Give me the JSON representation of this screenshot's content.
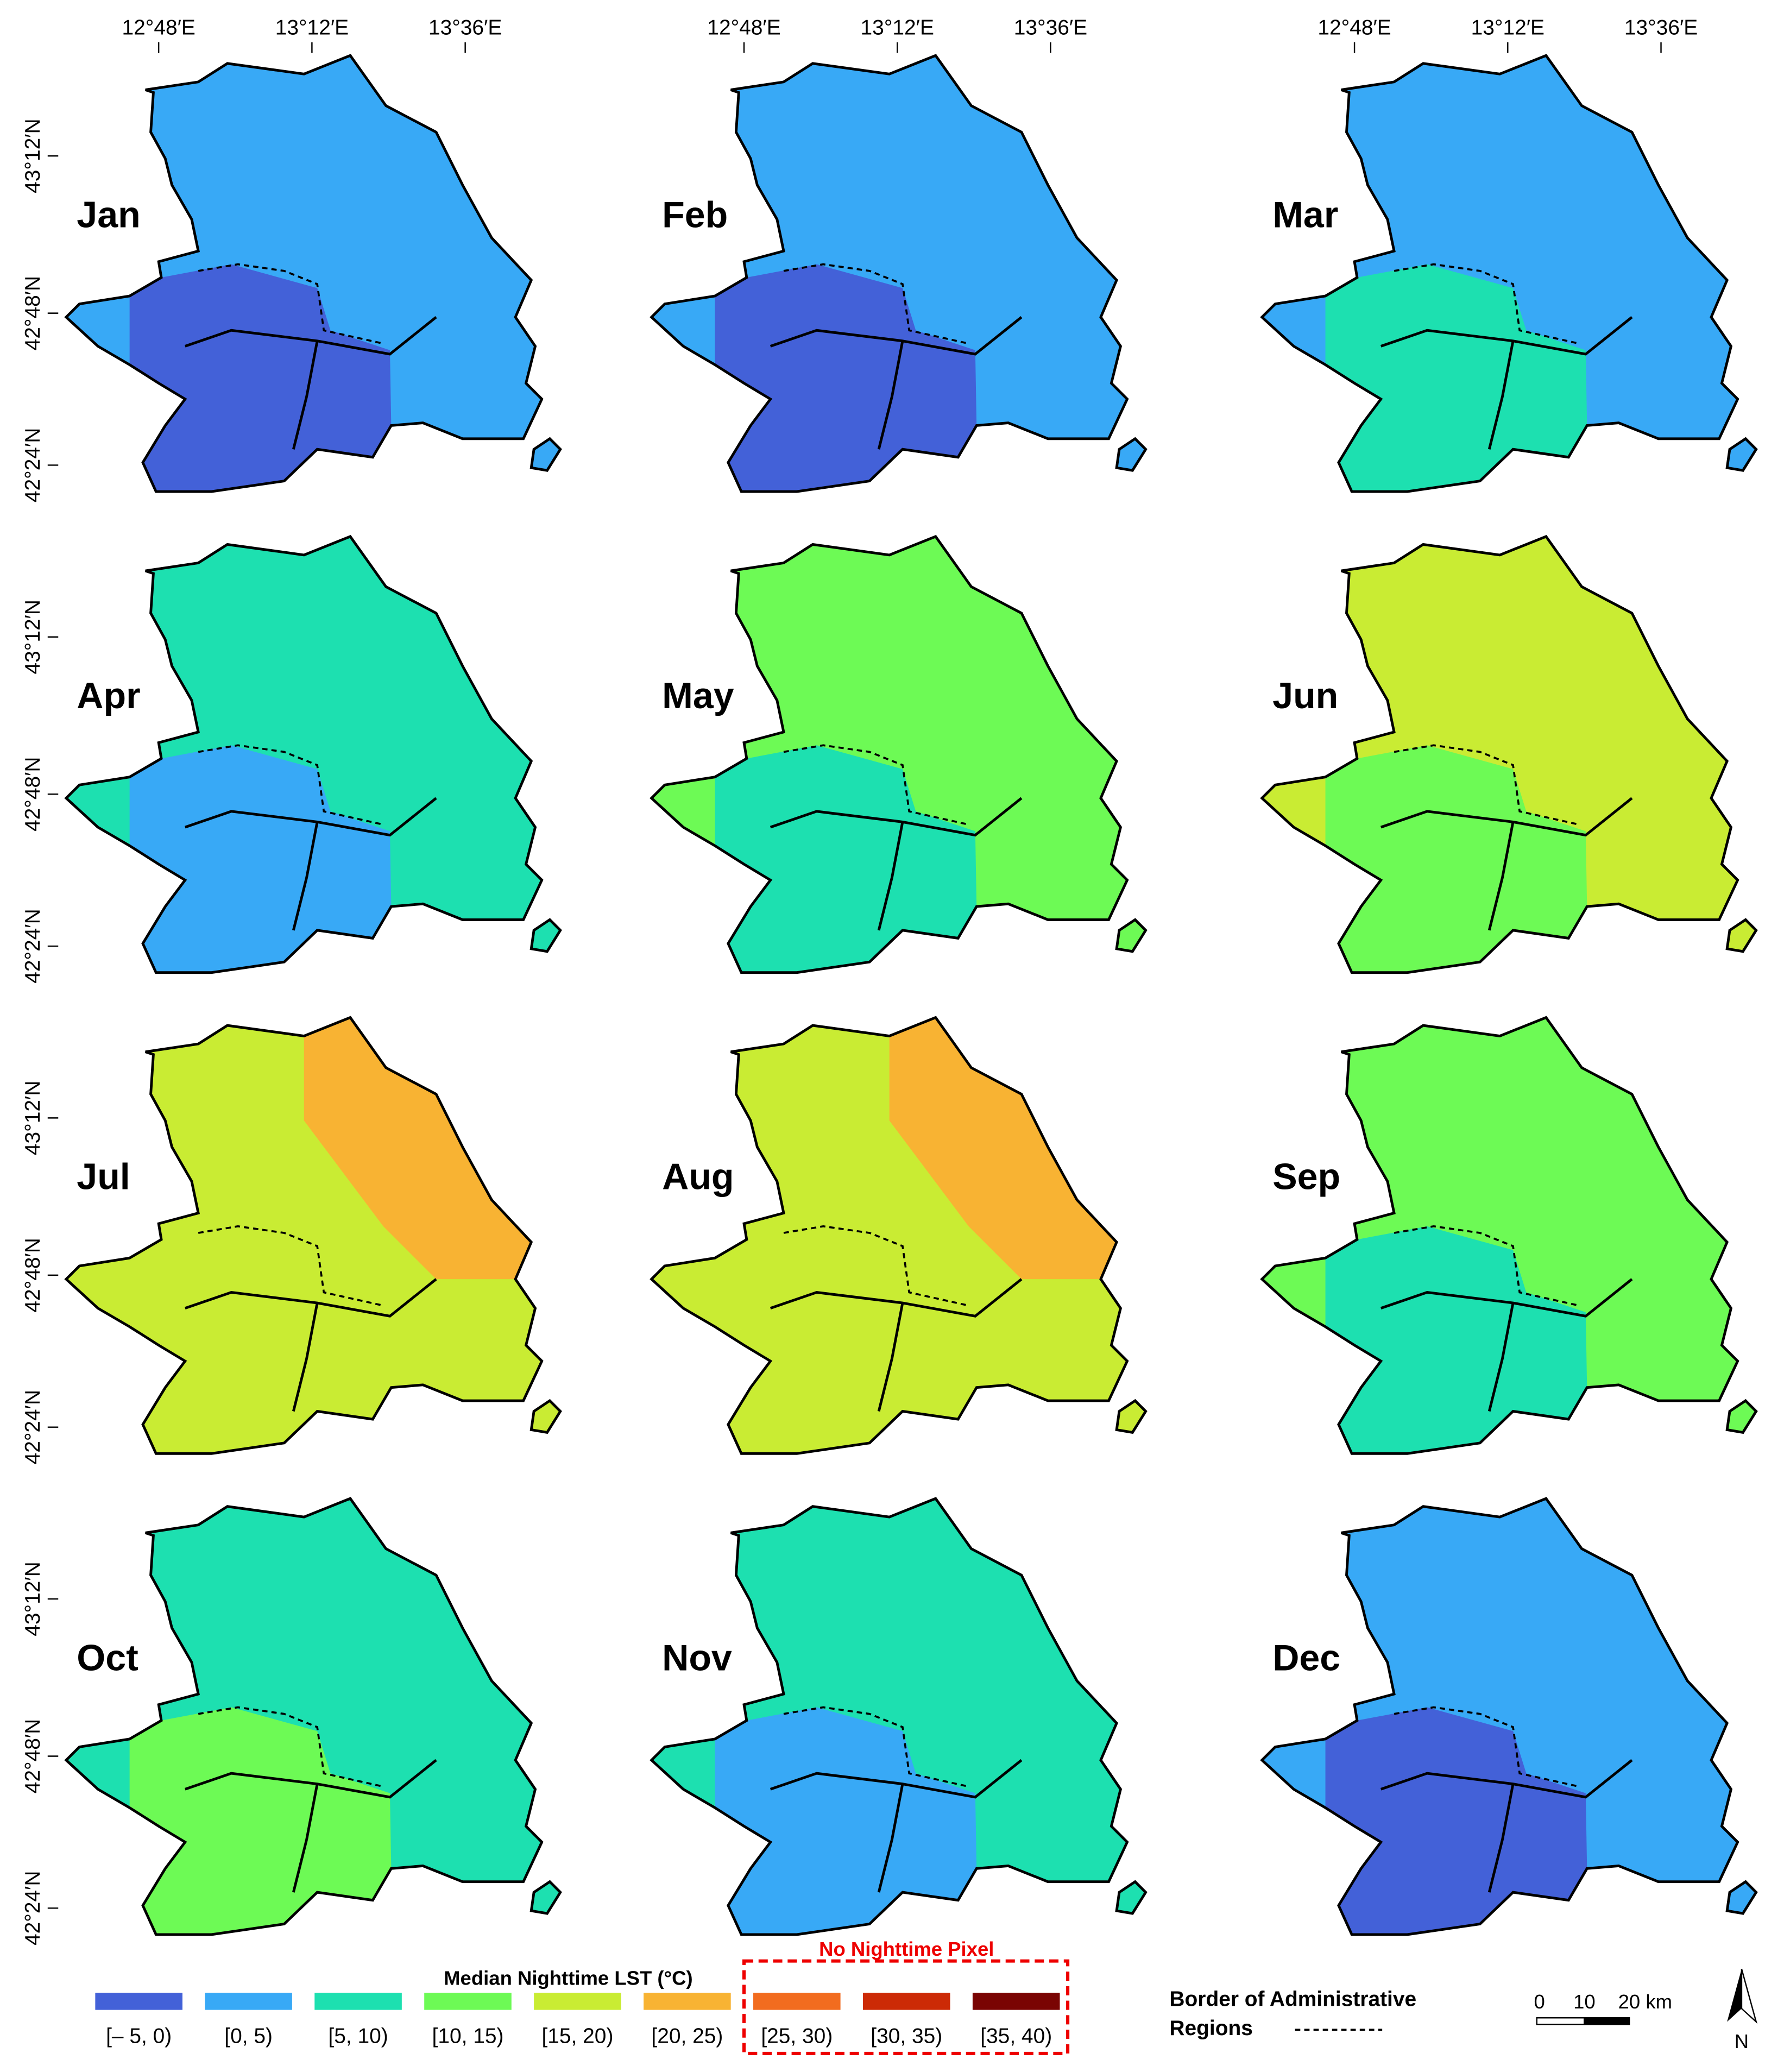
{
  "panels": [
    {
      "label": "Jan",
      "colors": [
        "#38a9f6",
        "#4361d8"
      ]
    },
    {
      "label": "Feb",
      "colors": [
        "#38a9f6",
        "#4361d8"
      ]
    },
    {
      "label": "Mar",
      "colors": [
        "#38a9f6",
        "#1de0b0"
      ]
    },
    {
      "label": "Apr",
      "colors": [
        "#1de0b0",
        "#38a9f6"
      ]
    },
    {
      "label": "May",
      "colors": [
        "#6dfa55",
        "#1de0b0"
      ]
    },
    {
      "label": "Jun",
      "colors": [
        "#c9ec33",
        "#6dfa55"
      ]
    },
    {
      "label": "Jul",
      "colors": [
        "#c9ec33",
        "#f8b333"
      ]
    },
    {
      "label": "Aug",
      "colors": [
        "#c9ec33",
        "#f8b333"
      ]
    },
    {
      "label": "Sep",
      "colors": [
        "#6dfa55",
        "#1de0b0"
      ]
    },
    {
      "label": "Oct",
      "colors": [
        "#1de0b0",
        "#6dfa55"
      ]
    },
    {
      "label": "Nov",
      "colors": [
        "#1de0b0",
        "#38a9f6"
      ]
    },
    {
      "label": "Dec",
      "colors": [
        "#38a9f6",
        "#4361d8"
      ]
    }
  ],
  "lon_labels": [
    "12°48′E",
    "13°12′E",
    "13°36′E"
  ],
  "lat_labels": [
    "43°12′N",
    "42°48′N",
    "42°24′N"
  ],
  "legend": {
    "title": "Median Nighttime LST (°C)",
    "no_pixel_label": "No Nighttime Pixel",
    "classes": [
      {
        "label": "[– 5, 0)",
        "color": "#4361d8"
      },
      {
        "label": "[0, 5)",
        "color": "#38a9f6"
      },
      {
        "label": "[5, 10)",
        "color": "#1de0b0"
      },
      {
        "label": "[10, 15)",
        "color": "#6dfa55"
      },
      {
        "label": "[15, 20)",
        "color": "#c9ec33"
      },
      {
        "label": "[20, 25)",
        "color": "#f8b333"
      },
      {
        "label": "[25, 30)",
        "color": "#f26c1f"
      },
      {
        "label": "[30, 35)",
        "color": "#cc2a06"
      },
      {
        "label": "[35, 40)",
        "color": "#7a0403"
      }
    ],
    "border_label": [
      "Border of Administrative",
      "Regions"
    ],
    "scale_labels": [
      "0",
      "10",
      "20 km"
    ],
    "north": "N"
  }
}
